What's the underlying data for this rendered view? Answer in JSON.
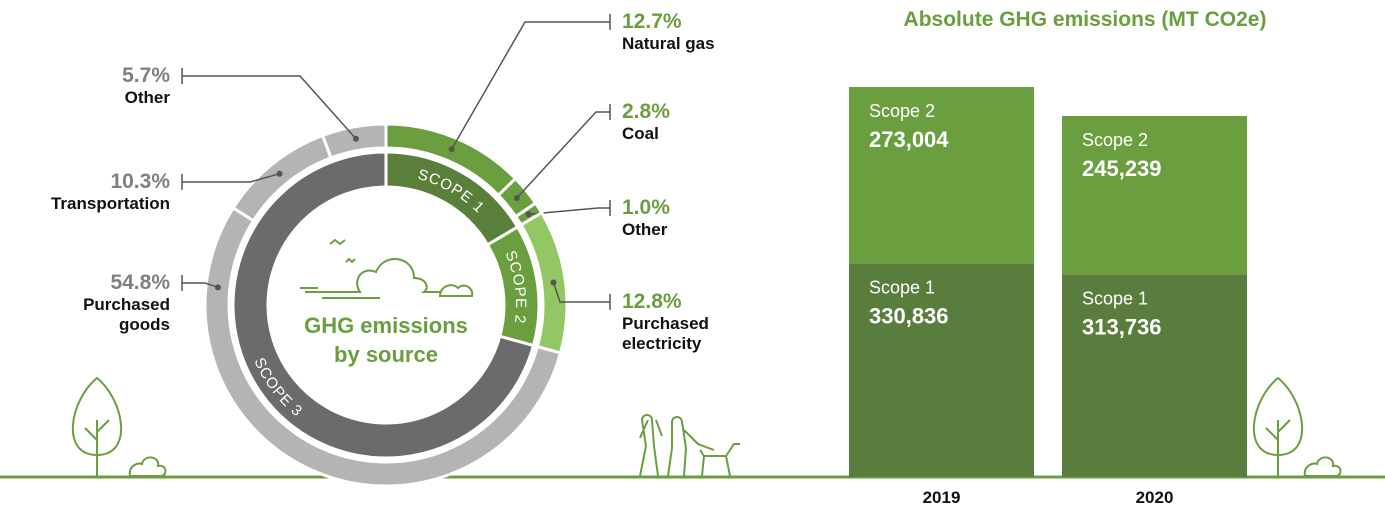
{
  "chart_data": [
    {
      "type": "donut",
      "title": "GHG emissions by source",
      "series": [
        {
          "name": "SCOPE 1",
          "color": "#5a7f3a",
          "label_color": "#6a9e3f",
          "segments": [
            {
              "name": "Natural gas",
              "value": 12.7,
              "value_label": "12.7%",
              "color": "#6a9e3f"
            },
            {
              "name": "Coal",
              "value": 2.8,
              "value_label": "2.8%",
              "color": "#6a9e3f"
            },
            {
              "name": "Other",
              "value": 1.0,
              "value_label": "1.0%",
              "color": "#6a9e3f"
            }
          ]
        },
        {
          "name": "SCOPE 2",
          "color": "#6a9e3f",
          "label_color": "#6a9e3f",
          "segments": [
            {
              "name": "Purchased electricity",
              "value": 12.8,
              "value_label": "12.8%",
              "color": "#93c763"
            }
          ]
        },
        {
          "name": "SCOPE 3",
          "color": "#6b6b6d",
          "label_color": "#808082",
          "segments": [
            {
              "name": "Purchased goods",
              "value": 54.8,
              "value_label": "54.8%",
              "color": "#b4b4b6"
            },
            {
              "name": "Transportation",
              "value": 10.3,
              "value_label": "10.3%",
              "color": "#b4b4b6"
            },
            {
              "name": "Other",
              "value": 5.7,
              "value_label": "5.7%",
              "color": "#b4b4b6"
            }
          ]
        }
      ]
    },
    {
      "type": "stacked-bar",
      "title": "Absolute GHG emissions (MT CO2e)",
      "categories": [
        "2019",
        "2020"
      ],
      "series": [
        {
          "name": "Scope 1",
          "color": "#597d3c",
          "values": [
            330836,
            313736
          ],
          "value_labels": [
            "330,836",
            "313,736"
          ]
        },
        {
          "name": "Scope 2",
          "color": "#6a9e3f",
          "values": [
            273004,
            245239
          ],
          "value_labels": [
            "273,004",
            "245,239"
          ]
        }
      ]
    }
  ]
}
